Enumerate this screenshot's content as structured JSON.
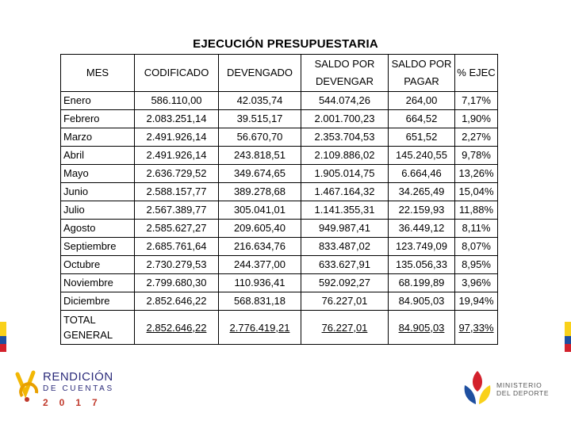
{
  "title": "EJECUCIÓN PRESUPUESTARIA",
  "table": {
    "headers": {
      "mes": "MES",
      "codificado": "CODIFICADO",
      "devengado": "DEVENGADO",
      "saldo_devengar": "SALDO POR DEVENGAR",
      "saldo_pagar": "SALDO POR PAGAR",
      "pct_ejec": "% EJEC"
    },
    "rows": [
      [
        "Enero",
        "586.110,00",
        "42.035,74",
        "544.074,26",
        "264,00",
        "7,17%"
      ],
      [
        "Febrero",
        "2.083.251,14",
        "39.515,17",
        "2.001.700,23",
        "664,52",
        "1,90%"
      ],
      [
        "Marzo",
        "2.491.926,14",
        "56.670,70",
        "2.353.704,53",
        "651,52",
        "2,27%"
      ],
      [
        "Abril",
        "2.491.926,14",
        "243.818,51",
        "2.109.886,02",
        "145.240,55",
        "9,78%"
      ],
      [
        "Mayo",
        "2.636.729,52",
        "349.674,65",
        "1.905.014,75",
        "6.664,46",
        "13,26%"
      ],
      [
        "Junio",
        "2.588.157,77",
        "389.278,68",
        "1.467.164,32",
        "34.265,49",
        "15,04%"
      ],
      [
        "Julio",
        "2.567.389,77",
        "305.041,01",
        "1.141.355,31",
        "22.159,93",
        "11,88%"
      ],
      [
        "Agosto",
        "2.585.627,27",
        "209.605,40",
        "949.987,41",
        "36.449,12",
        "8,11%"
      ],
      [
        "Septiembre",
        "2.685.761,64",
        "216.634,76",
        "833.487,02",
        "123.749,09",
        "8,07%"
      ],
      [
        "Octubre",
        "2.730.279,53",
        "244.377,00",
        "633.627,91",
        "135.056,33",
        "8,95%"
      ],
      [
        "Noviembre",
        "2.799.680,30",
        "110.936,41",
        "592.092,27",
        "68.199,89",
        "3,96%"
      ],
      [
        "Diciembre",
        "2.852.646,22",
        "568.831,18",
        "76.227,01",
        "84.905,03",
        "19,94%"
      ]
    ],
    "total": [
      "TOTAL GENERAL",
      "2.852.646,22",
      "2.776.419,21",
      "76.227,01",
      "84.905,03",
      "97,33%"
    ]
  },
  "logos": {
    "rendicion": {
      "line1": "RENDICIÓN",
      "line2": "DE CUENTAS",
      "year": "2017"
    },
    "ministerio": {
      "line1": "MINISTERIO",
      "line2": "DEL DEPORTE"
    }
  },
  "colors": {
    "yellow": "#f9d11a",
    "blue": "#1e4fa0",
    "red": "#d3212c",
    "navy": "#2b2b7a"
  }
}
